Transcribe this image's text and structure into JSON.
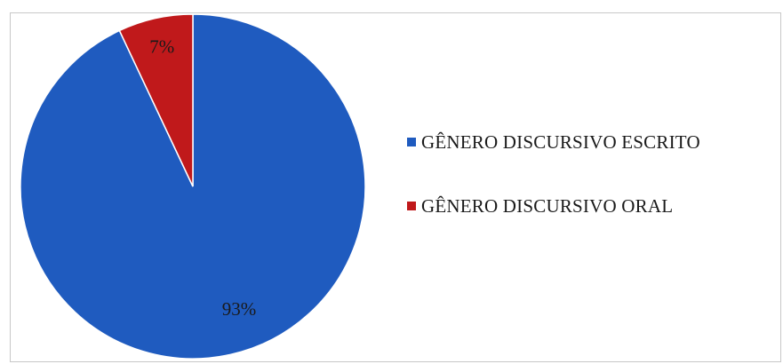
{
  "chart_data": {
    "type": "pie",
    "title": "",
    "slices": [
      {
        "name": "GÊNERO DISCURSIVO ESCRITO",
        "value": 93,
        "label": "93%",
        "color": "#1f5bbf"
      },
      {
        "name": "GÊNERO DISCURSIVO ORAL",
        "value": 7,
        "label": "7%",
        "color": "#c0191b"
      }
    ],
    "legend_position": "right"
  }
}
